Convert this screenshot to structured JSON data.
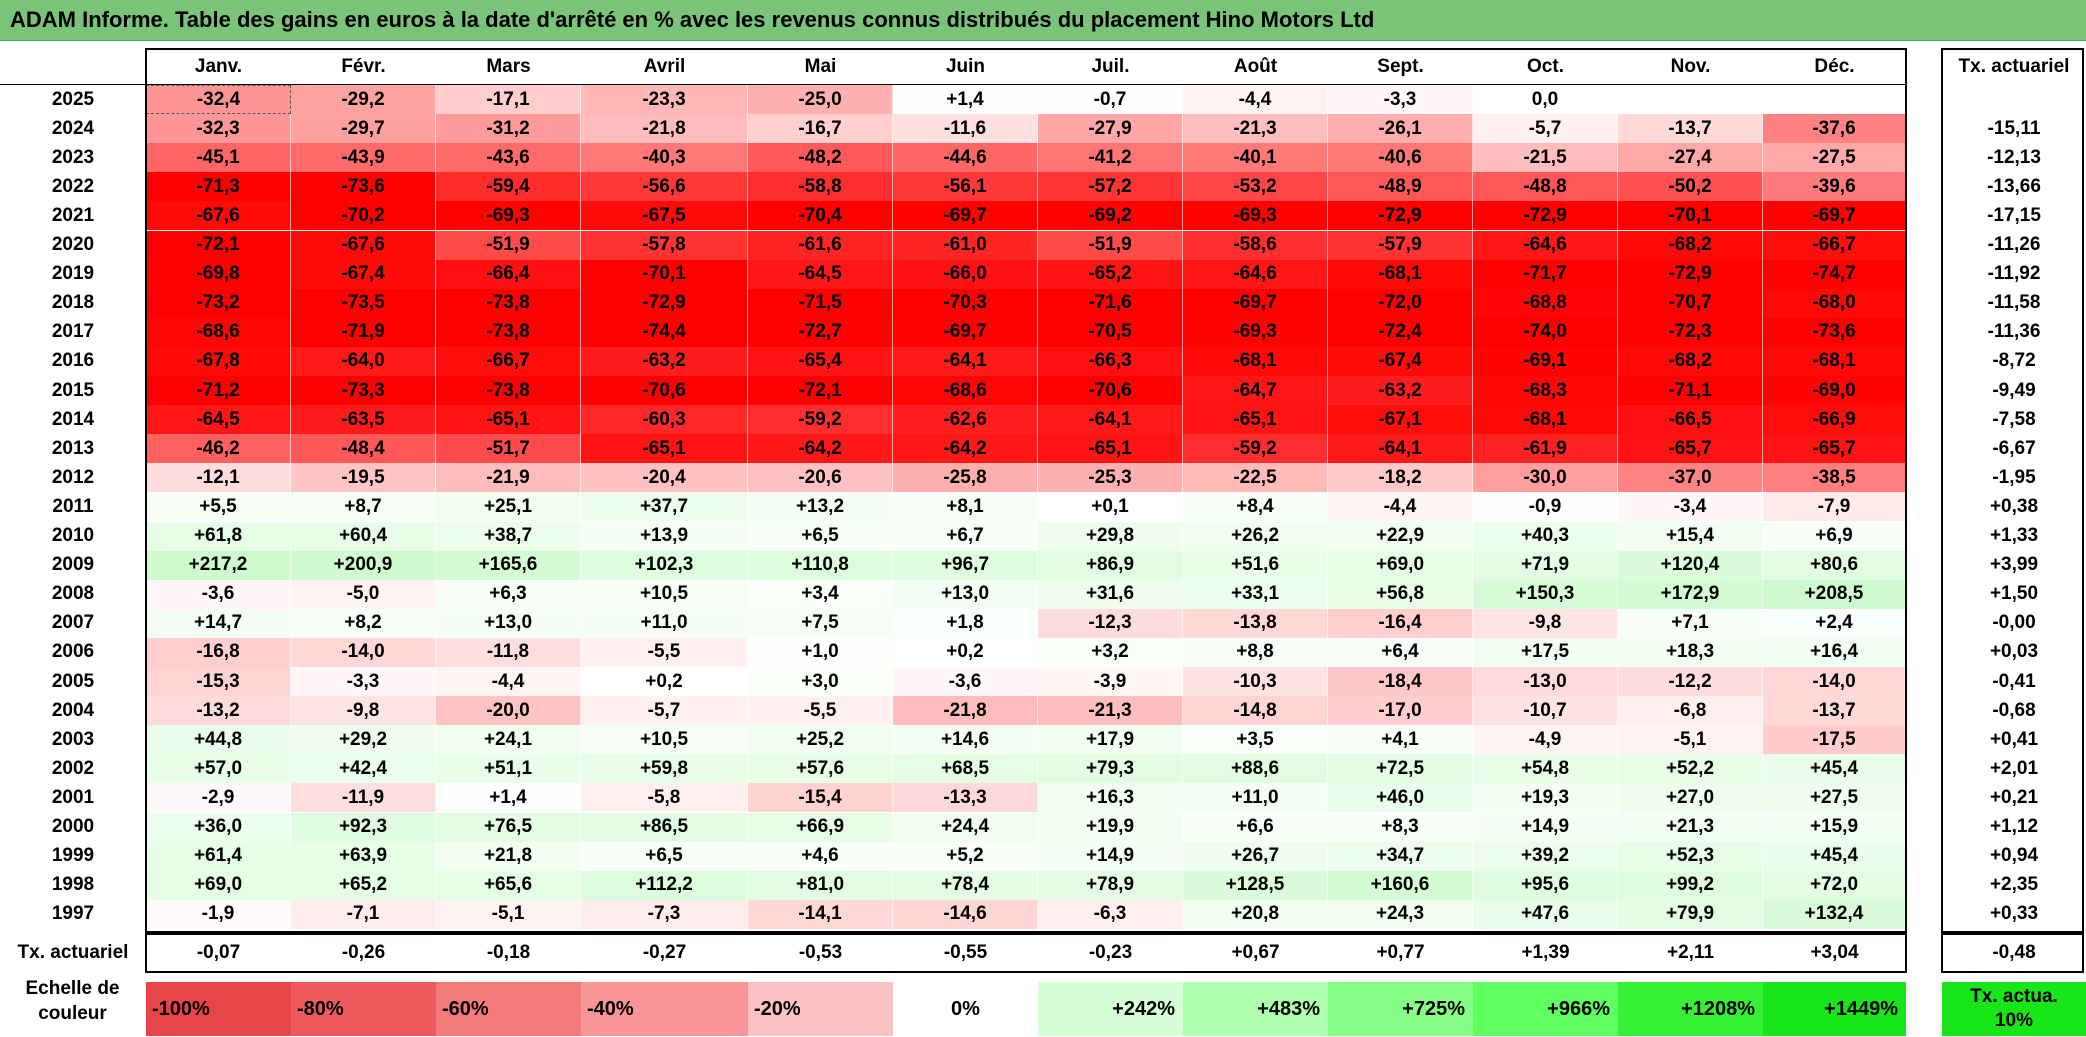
{
  "title": "ADAM Informe. Table des gains en euros à la date d'arrêté en % avec les revenus connus distribués du placement Hino Motors Ltd",
  "chart_data": {
    "type": "table",
    "months": [
      "Janv.",
      "Févr.",
      "Mars",
      "Avril",
      "Mai",
      "Juin",
      "Juil.",
      "Août",
      "Sept.",
      "Oct.",
      "Nov.",
      "Déc."
    ],
    "annual_header": "Tx. actuariel",
    "rows": [
      {
        "year": "2025",
        "values": [
          "-32,4",
          "-29,2",
          "-17,1",
          "-23,3",
          "-25,0",
          "+1,4",
          "-0,7",
          "-4,4",
          "-3,3",
          "0,0",
          "",
          ""
        ],
        "annual": ""
      },
      {
        "year": "2024",
        "values": [
          "-32,3",
          "-29,7",
          "-31,2",
          "-21,8",
          "-16,7",
          "-11,6",
          "-27,9",
          "-21,3",
          "-26,1",
          "-5,7",
          "-13,7",
          "-37,6"
        ],
        "annual": "-15,11"
      },
      {
        "year": "2023",
        "values": [
          "-45,1",
          "-43,9",
          "-43,6",
          "-40,3",
          "-48,2",
          "-44,6",
          "-41,2",
          "-40,1",
          "-40,6",
          "-21,5",
          "-27,4",
          "-27,5"
        ],
        "annual": "-12,13"
      },
      {
        "year": "2022",
        "values": [
          "-71,3",
          "-73,6",
          "-59,4",
          "-56,6",
          "-58,8",
          "-56,1",
          "-57,2",
          "-53,2",
          "-48,9",
          "-48,8",
          "-50,2",
          "-39,6"
        ],
        "annual": "-13,66"
      },
      {
        "year": "2021",
        "values": [
          "-67,6",
          "-70,2",
          "-69,3",
          "-67,5",
          "-70,4",
          "-69,7",
          "-69,2",
          "-69,3",
          "-72,9",
          "-72,9",
          "-70,1",
          "-69,7"
        ],
        "annual": "-17,15"
      },
      {
        "year": "2020",
        "values": [
          "-72,1",
          "-67,6",
          "-51,9",
          "-57,8",
          "-61,6",
          "-61,0",
          "-51,9",
          "-58,6",
          "-57,9",
          "-64,6",
          "-68,2",
          "-66,7"
        ],
        "annual": "-11,26"
      },
      {
        "year": "2019",
        "values": [
          "-69,8",
          "-67,4",
          "-66,4",
          "-70,1",
          "-64,5",
          "-66,0",
          "-65,2",
          "-64,6",
          "-68,1",
          "-71,7",
          "-72,9",
          "-74,7"
        ],
        "annual": "-11,92"
      },
      {
        "year": "2018",
        "values": [
          "-73,2",
          "-73,5",
          "-73,8",
          "-72,9",
          "-71,5",
          "-70,3",
          "-71,6",
          "-69,7",
          "-72,0",
          "-68,8",
          "-70,7",
          "-68,0"
        ],
        "annual": "-11,58"
      },
      {
        "year": "2017",
        "values": [
          "-68,6",
          "-71,9",
          "-73,8",
          "-74,4",
          "-72,7",
          "-69,7",
          "-70,5",
          "-69,3",
          "-72,4",
          "-74,0",
          "-72,3",
          "-73,6"
        ],
        "annual": "-11,36"
      },
      {
        "year": "2016",
        "values": [
          "-67,8",
          "-64,0",
          "-66,7",
          "-63,2",
          "-65,4",
          "-64,1",
          "-66,3",
          "-68,1",
          "-67,4",
          "-69,1",
          "-68,2",
          "-68,1"
        ],
        "annual": "-8,72"
      },
      {
        "year": "2015",
        "values": [
          "-71,2",
          "-73,3",
          "-73,8",
          "-70,6",
          "-72,1",
          "-68,6",
          "-70,6",
          "-64,7",
          "-63,2",
          "-68,3",
          "-71,1",
          "-69,0"
        ],
        "annual": "-9,49"
      },
      {
        "year": "2014",
        "values": [
          "-64,5",
          "-63,5",
          "-65,1",
          "-60,3",
          "-59,2",
          "-62,6",
          "-64,1",
          "-65,1",
          "-67,1",
          "-68,1",
          "-66,5",
          "-66,9"
        ],
        "annual": "-7,58"
      },
      {
        "year": "2013",
        "values": [
          "-46,2",
          "-48,4",
          "-51,7",
          "-65,1",
          "-64,2",
          "-64,2",
          "-65,1",
          "-59,2",
          "-64,1",
          "-61,9",
          "-65,7",
          "-65,7"
        ],
        "annual": "-6,67"
      },
      {
        "year": "2012",
        "values": [
          "-12,1",
          "-19,5",
          "-21,9",
          "-20,4",
          "-20,6",
          "-25,8",
          "-25,3",
          "-22,5",
          "-18,2",
          "-30,0",
          "-37,0",
          "-38,5"
        ],
        "annual": "-1,95"
      },
      {
        "year": "2011",
        "values": [
          "+5,5",
          "+8,7",
          "+25,1",
          "+37,7",
          "+13,2",
          "+8,1",
          "+0,1",
          "+8,4",
          "-4,4",
          "-0,9",
          "-3,4",
          "-7,9"
        ],
        "annual": "+0,38"
      },
      {
        "year": "2010",
        "values": [
          "+61,8",
          "+60,4",
          "+38,7",
          "+13,9",
          "+6,5",
          "+6,7",
          "+29,8",
          "+26,2",
          "+22,9",
          "+40,3",
          "+15,4",
          "+6,9"
        ],
        "annual": "+1,33"
      },
      {
        "year": "2009",
        "values": [
          "+217,2",
          "+200,9",
          "+165,6",
          "+102,3",
          "+110,8",
          "+96,7",
          "+86,9",
          "+51,6",
          "+69,0",
          "+71,9",
          "+120,4",
          "+80,6"
        ],
        "annual": "+3,99"
      },
      {
        "year": "2008",
        "values": [
          "-3,6",
          "-5,0",
          "+6,3",
          "+10,5",
          "+3,4",
          "+13,0",
          "+31,6",
          "+33,1",
          "+56,8",
          "+150,3",
          "+172,9",
          "+208,5"
        ],
        "annual": "+1,50"
      },
      {
        "year": "2007",
        "values": [
          "+14,7",
          "+8,2",
          "+13,0",
          "+11,0",
          "+7,5",
          "+1,8",
          "-12,3",
          "-13,8",
          "-16,4",
          "-9,8",
          "+7,1",
          "+2,4"
        ],
        "annual": "-0,00"
      },
      {
        "year": "2006",
        "values": [
          "-16,8",
          "-14,0",
          "-11,8",
          "-5,5",
          "+1,0",
          "+0,2",
          "+3,2",
          "+8,8",
          "+6,4",
          "+17,5",
          "+18,3",
          "+16,4"
        ],
        "annual": "+0,03"
      },
      {
        "year": "2005",
        "values": [
          "-15,3",
          "-3,3",
          "-4,4",
          "+0,2",
          "+3,0",
          "-3,6",
          "-3,9",
          "-10,3",
          "-18,4",
          "-13,0",
          "-12,2",
          "-14,0"
        ],
        "annual": "-0,41"
      },
      {
        "year": "2004",
        "values": [
          "-13,2",
          "-9,8",
          "-20,0",
          "-5,7",
          "-5,5",
          "-21,8",
          "-21,3",
          "-14,8",
          "-17,0",
          "-10,7",
          "-6,8",
          "-13,7"
        ],
        "annual": "-0,68"
      },
      {
        "year": "2003",
        "values": [
          "+44,8",
          "+29,2",
          "+24,1",
          "+10,5",
          "+25,2",
          "+14,6",
          "+17,9",
          "+3,5",
          "+4,1",
          "-4,9",
          "-5,1",
          "-17,5"
        ],
        "annual": "+0,41"
      },
      {
        "year": "2002",
        "values": [
          "+57,0",
          "+42,4",
          "+51,1",
          "+59,8",
          "+57,6",
          "+68,5",
          "+79,3",
          "+88,6",
          "+72,5",
          "+54,8",
          "+52,2",
          "+45,4"
        ],
        "annual": "+2,01"
      },
      {
        "year": "2001",
        "values": [
          "-2,9",
          "-11,9",
          "+1,4",
          "-5,8",
          "-15,4",
          "-13,3",
          "+16,3",
          "+11,0",
          "+46,0",
          "+19,3",
          "+27,0",
          "+27,5"
        ],
        "annual": "+0,21"
      },
      {
        "year": "2000",
        "values": [
          "+36,0",
          "+92,3",
          "+76,5",
          "+86,5",
          "+66,9",
          "+24,4",
          "+19,9",
          "+6,6",
          "+8,3",
          "+14,9",
          "+21,3",
          "+15,9"
        ],
        "annual": "+1,12"
      },
      {
        "year": "1999",
        "values": [
          "+61,4",
          "+63,9",
          "+21,8",
          "+6,5",
          "+4,6",
          "+5,2",
          "+14,9",
          "+26,7",
          "+34,7",
          "+39,2",
          "+52,3",
          "+45,4"
        ],
        "annual": "+0,94"
      },
      {
        "year": "1998",
        "values": [
          "+69,0",
          "+65,2",
          "+65,6",
          "+112,2",
          "+81,0",
          "+78,4",
          "+78,9",
          "+128,5",
          "+160,6",
          "+95,6",
          "+99,2",
          "+72,0"
        ],
        "annual": "+2,35"
      },
      {
        "year": "1997",
        "values": [
          "-1,9",
          "-7,1",
          "-5,1",
          "-7,3",
          "-14,1",
          "-14,6",
          "-6,3",
          "+20,8",
          "+24,3",
          "+47,6",
          "+79,9",
          "+132,4"
        ],
        "annual": "+0,33"
      }
    ],
    "footer": {
      "label": "Tx. actuariel",
      "values": [
        "-0,07",
        "-0,26",
        "-0,18",
        "-0,27",
        "-0,53",
        "-0,55",
        "-0,23",
        "+0,67",
        "+0,77",
        "+1,39",
        "+2,11",
        "+3,04"
      ],
      "annual": "-0,48"
    },
    "legend": {
      "label": "Echelle de couleur",
      "steps": [
        "-100%",
        "-80%",
        "-60%",
        "-40%",
        "-20%",
        "0%",
        "+242%",
        "+483%",
        "+725%",
        "+966%",
        "+1208%",
        "+1449%"
      ],
      "step_colors": [
        "#e8454a",
        "#ee5a5e",
        "#f3797b",
        "#f79597",
        "#fbc2c3",
        "#ffffff",
        "#d6ffd6",
        "#aeffae",
        "#86ff86",
        "#5eff5e",
        "#36f036",
        "#19e619"
      ],
      "annual_label": "Tx. actua. 10%",
      "annual_color": "#19e619"
    },
    "color_scale": {
      "negative_color": "#ff0000",
      "positive_color": "#00e600",
      "negative_max": 70,
      "positive_max": 1449
    }
  }
}
